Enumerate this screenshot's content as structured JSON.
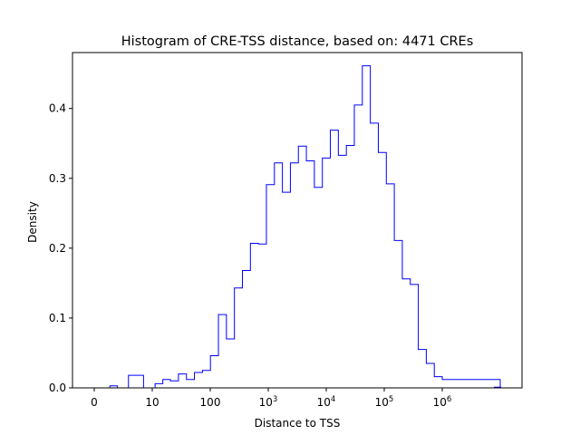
{
  "chart_data": {
    "type": "step-histogram",
    "title": "Histogram of CRE-TSS distance, based on: 4471 CREs",
    "xlabel": "Distance to TSS",
    "ylabel": "Density",
    "x_scale": "symlog",
    "ylim": [
      0,
      0.48
    ],
    "grid": false,
    "line_color": "#0000ff",
    "x_ticks": [
      {
        "value": 0,
        "label": "0",
        "base": "",
        "exp": ""
      },
      {
        "value": 10,
        "label": "10",
        "base": "",
        "exp": ""
      },
      {
        "value": 100,
        "label": "100",
        "base": "",
        "exp": ""
      },
      {
        "value": 1000,
        "label": "",
        "base": "10",
        "exp": "3"
      },
      {
        "value": 10000,
        "label": "",
        "base": "10",
        "exp": "4"
      },
      {
        "value": 100000,
        "label": "",
        "base": "10",
        "exp": "5"
      },
      {
        "value": 1000000,
        "label": "",
        "base": "10",
        "exp": "6"
      }
    ],
    "y_ticks": [
      {
        "value": 0.0,
        "label": "0.0"
      },
      {
        "value": 0.1,
        "label": "0.1"
      },
      {
        "value": 0.2,
        "label": "0.2"
      },
      {
        "value": 0.3,
        "label": "0.3"
      },
      {
        "value": 0.4,
        "label": "0.4"
      }
    ],
    "bin_edges": [
      0,
      2.7,
      4.0,
      5.9,
      8.5,
      11.2,
      15.2,
      20.6,
      28.3,
      38.9,
      53.4,
      73.4,
      100.8,
      138.4,
      190.1,
      261.1,
      358.7,
      492.7,
      676.7,
      929.4,
      1276.6,
      1753.5,
      2408.5,
      3308.1,
      4543.7,
      6240.9,
      8572.0,
      11773.9,
      16171.6,
      22212.1,
      30509.0,
      41905.0,
      57557.8,
      79057.3,
      108587.3,
      149147.5,
      204856.8,
      281375.1,
      386474.1,
      530831.8,
      729110.5,
      1001450.0,
      10000000.0
    ],
    "densities": [
      0.0,
      0.003,
      0.0,
      0.018,
      0.0,
      0.006,
      0.012,
      0.01,
      0.02,
      0.012,
      0.022,
      0.025,
      0.046,
      0.105,
      0.07,
      0.143,
      0.168,
      0.207,
      0.206,
      0.291,
      0.322,
      0.28,
      0.322,
      0.346,
      0.325,
      0.287,
      0.329,
      0.369,
      0.333,
      0.347,
      0.405,
      0.461,
      0.379,
      0.337,
      0.292,
      0.211,
      0.156,
      0.148,
      0.055,
      0.035,
      0.016,
      0.012,
      0.0
    ],
    "right_edge_bin": {
      "x0": 7500000,
      "x1": 9500000,
      "density": 0.001
    }
  }
}
